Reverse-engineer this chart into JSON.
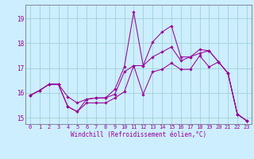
{
  "xlabel": "Windchill (Refroidissement éolien,°C)",
  "x": [
    0,
    1,
    2,
    3,
    4,
    5,
    6,
    7,
    8,
    9,
    10,
    11,
    12,
    13,
    14,
    15,
    16,
    17,
    18,
    19,
    20,
    21,
    22,
    23
  ],
  "line_top": [
    15.9,
    16.1,
    16.35,
    16.35,
    15.85,
    15.6,
    15.75,
    15.8,
    15.8,
    16.15,
    17.05,
    19.25,
    17.1,
    18.05,
    18.45,
    18.7,
    17.45,
    17.45,
    17.75,
    17.7,
    17.25,
    16.8,
    15.15,
    14.88
  ],
  "line_mid": [
    15.9,
    16.1,
    16.35,
    16.35,
    15.45,
    15.25,
    15.75,
    15.8,
    15.8,
    15.95,
    16.85,
    17.1,
    17.1,
    17.45,
    17.65,
    17.85,
    17.3,
    17.45,
    17.6,
    17.7,
    17.25,
    16.8,
    15.15,
    14.88
  ],
  "line_bot": [
    15.9,
    16.1,
    16.35,
    16.35,
    15.45,
    15.25,
    15.6,
    15.6,
    15.6,
    15.8,
    16.05,
    17.1,
    15.95,
    16.85,
    16.95,
    17.2,
    16.95,
    16.95,
    17.5,
    17.05,
    17.25,
    16.8,
    15.15,
    14.88
  ],
  "bg_color": "#cceeff",
  "grid_color": "#99cccc",
  "line_color": "#990099",
  "ylim_min": 14.75,
  "ylim_max": 19.55,
  "ytop_label": "19",
  "yticks": [
    15,
    16,
    17,
    18,
    19
  ],
  "marker": "D",
  "marker_size": 1.8,
  "linewidth": 0.75,
  "tick_fontsize": 5.0,
  "xlabel_fontsize": 5.5
}
